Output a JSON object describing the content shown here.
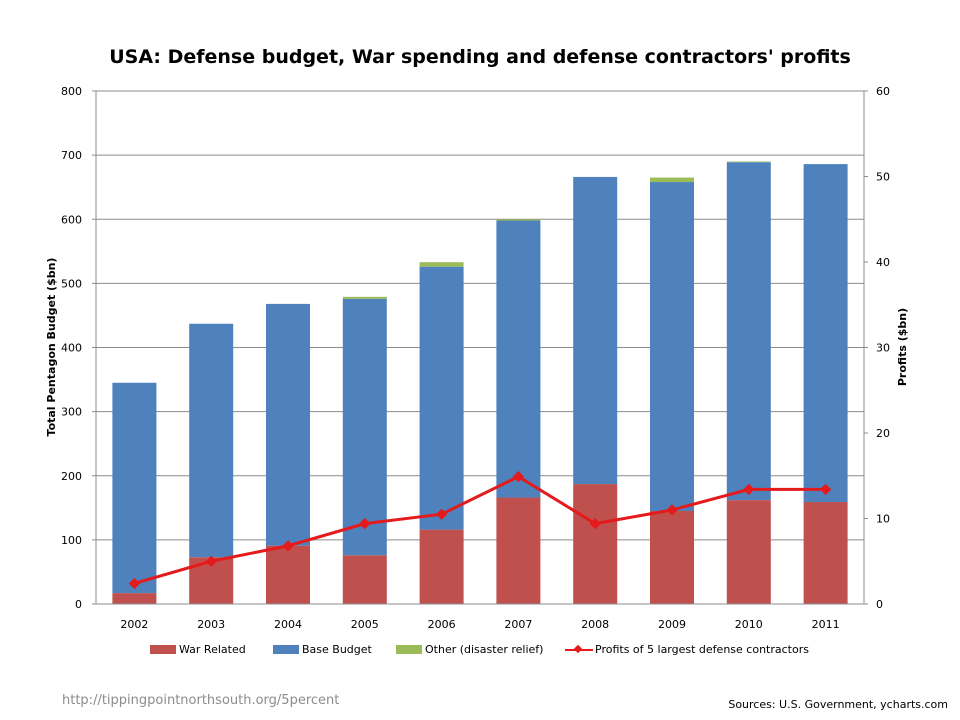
{
  "chart_data": {
    "type": "bar",
    "stacked": true,
    "title": "USA: Defense budget, War spending and defense contractors' profits",
    "categories": [
      "2002",
      "2003",
      "2004",
      "2005",
      "2006",
      "2007",
      "2008",
      "2009",
      "2010",
      "2011"
    ],
    "series": [
      {
        "name": "War Related",
        "axis": "left",
        "color": "#c0504d",
        "values": [
          17,
          73,
          91,
          76,
          116,
          166,
          187,
          145,
          162,
          159
        ]
      },
      {
        "name": "Base Budget",
        "axis": "left",
        "color": "#4f81bd",
        "values": [
          328,
          364,
          377,
          400,
          410,
          432,
          479,
          513,
          527,
          527
        ]
      },
      {
        "name": "Other (disaster relief)",
        "axis": "left",
        "color": "#9bbb59",
        "values": [
          0,
          0,
          0,
          3,
          7,
          2,
          0,
          7,
          1,
          0
        ]
      },
      {
        "name": "Profits of 5 largest defense contractors",
        "type": "line",
        "axis": "right",
        "color": "#e41a1c",
        "values": [
          2.4,
          5.0,
          6.8,
          9.4,
          10.5,
          14.9,
          9.4,
          11.0,
          13.4,
          13.4
        ]
      }
    ],
    "ylabel": "Total Pentagon Budget ($bn)",
    "ylim": [
      0,
      800
    ],
    "yticks": [
      "0",
      "100",
      "200",
      "300",
      "400",
      "500",
      "600",
      "700",
      "800"
    ],
    "y2label": "Profits ($bn)",
    "y2lim": [
      0,
      60
    ],
    "y2ticks": [
      "0",
      "10",
      "20",
      "30",
      "40",
      "50",
      "60"
    ],
    "grid": true,
    "legend_position": "bottom"
  },
  "legend": {
    "war": "War Related",
    "base": "Base Budget",
    "other": "Other (disaster relief)",
    "profits": "Profits of 5 largest defense contractors"
  },
  "footer": {
    "url": "http://tippingpointnorthsouth.org/5percent",
    "credit": "Sources: U.S. Government, ycharts.com"
  }
}
